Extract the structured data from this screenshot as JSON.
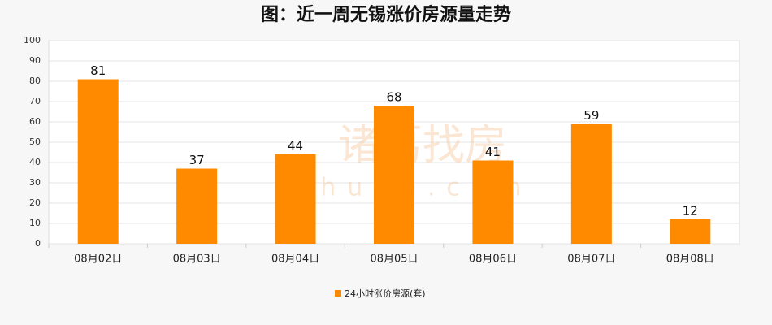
{
  "chart_data": {
    "type": "bar",
    "title": "图：近一周无锡涨价房源量走势",
    "categories": [
      "08月02日",
      "08月03日",
      "08月04日",
      "08月05日",
      "08月06日",
      "08月07日",
      "08月08日"
    ],
    "series": [
      {
        "name": "24小时涨价房源(套)",
        "color": "#ff8a00",
        "values": [
          81,
          37,
          44,
          68,
          41,
          59,
          12
        ]
      }
    ],
    "ylim": [
      0,
      100
    ],
    "yticks": [
      0,
      10,
      20,
      30,
      40,
      50,
      60,
      70,
      80,
      90,
      100
    ],
    "grid": true,
    "legend": "bottom",
    "watermark": "诸葛找房",
    "watermark_url": "zhuge.com"
  }
}
